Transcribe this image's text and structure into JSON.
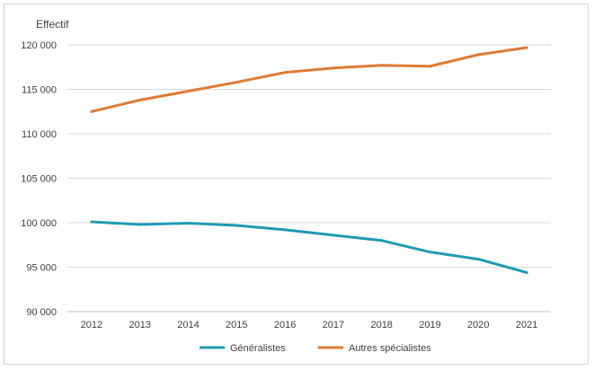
{
  "chart_data": {
    "type": "line",
    "title": "",
    "xlabel": "",
    "ylabel": "Effectif",
    "categories": [
      "2012",
      "2013",
      "2014",
      "2015",
      "2016",
      "2017",
      "2018",
      "2019",
      "2020",
      "2021"
    ],
    "ylim": [
      90000,
      120000
    ],
    "yticks": [
      {
        "value": 90000,
        "label": "90 000"
      },
      {
        "value": 95000,
        "label": "95 000"
      },
      {
        "value": 100000,
        "label": "100 000"
      },
      {
        "value": 105000,
        "label": "105 000"
      },
      {
        "value": 110000,
        "label": "110 000"
      },
      {
        "value": 115000,
        "label": "115 000"
      },
      {
        "value": 120000,
        "label": "120 000"
      }
    ],
    "grid": true,
    "legend_position": "bottom",
    "series": [
      {
        "name": "Généralistes",
        "color": "#1f9bb5",
        "values": [
          100100,
          99800,
          99950,
          99700,
          99200,
          98600,
          98000,
          96700,
          95900,
          94400
        ]
      },
      {
        "name": "Autres spécialistes",
        "color": "#e07b35",
        "values": [
          112500,
          113800,
          114800,
          115800,
          116900,
          117400,
          117700,
          117600,
          118900,
          119700
        ]
      }
    ]
  }
}
